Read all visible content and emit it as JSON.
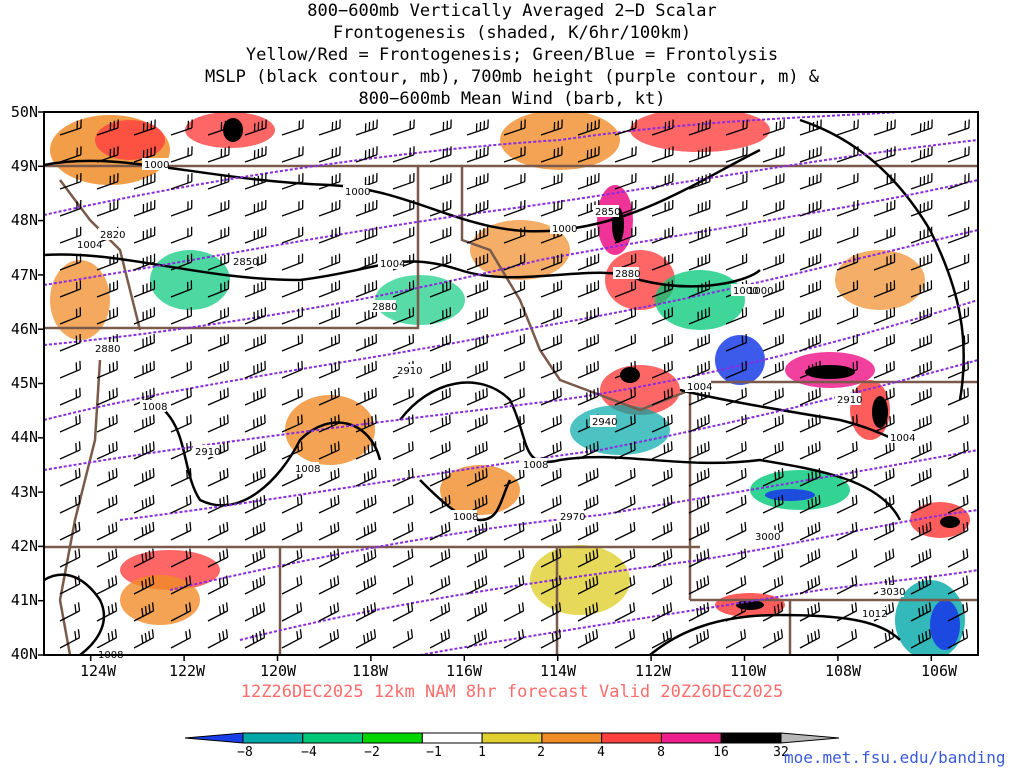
{
  "title": {
    "lines": [
      "800−600mb Vertically Averaged 2−D Scalar",
      "Frontogenesis (shaded, K/6hr/100km)",
      "Yellow/Red = Frontogenesis;  Green/Blue = Frontolysis",
      "MSLP (black contour, mb), 700mb height (purple contour, m) &",
      "800−600mb Mean Wind (barb, kt)"
    ]
  },
  "axes": {
    "lat_labels": [
      "50N",
      "49N",
      "48N",
      "47N",
      "46N",
      "45N",
      "44N",
      "43N",
      "42N",
      "41N",
      "40N"
    ],
    "lon_labels": [
      "124W",
      "122W",
      "120W",
      "118W",
      "116W",
      "114W",
      "112W",
      "110W",
      "108W",
      "106W"
    ],
    "lat_range": [
      40,
      50
    ],
    "lon_range": [
      -125,
      -105
    ]
  },
  "forecast_label": "12Z26DEC2025 12km NAM 8hr forecast Valid 20Z26DEC2025",
  "colorbar": {
    "labels": [
      "−8",
      "−4",
      "−2",
      "−1",
      "1",
      "2",
      "4",
      "8",
      "16",
      "32"
    ],
    "colors": [
      "#1a3ee6",
      "#00a8a8",
      "#00c878",
      "#00d600",
      "#ffffff",
      "#e0d030",
      "#f08c28",
      "#ff4040",
      "#ee1e8c",
      "#000000",
      "#b8b8b8"
    ]
  },
  "credit": "moe.met.fsu.edu/banding",
  "contour_labels": {
    "mslp": [
      "1000",
      "1000",
      "1004",
      "1000",
      "1000",
      "1004",
      "1004",
      "1008",
      "1008",
      "1008",
      "1008",
      "1004",
      "1012",
      "1008",
      "1000"
    ],
    "height": [
      "2820",
      "2850",
      "2880",
      "2850",
      "2880",
      "2880",
      "2910",
      "2910",
      "2940",
      "2970",
      "3000",
      "3030",
      "2910"
    ]
  },
  "map_colors": {
    "state_border": "#7a5a4a",
    "mslp_contour": "#000000",
    "height_contour": "#8a2be2",
    "barb": "#000000"
  }
}
